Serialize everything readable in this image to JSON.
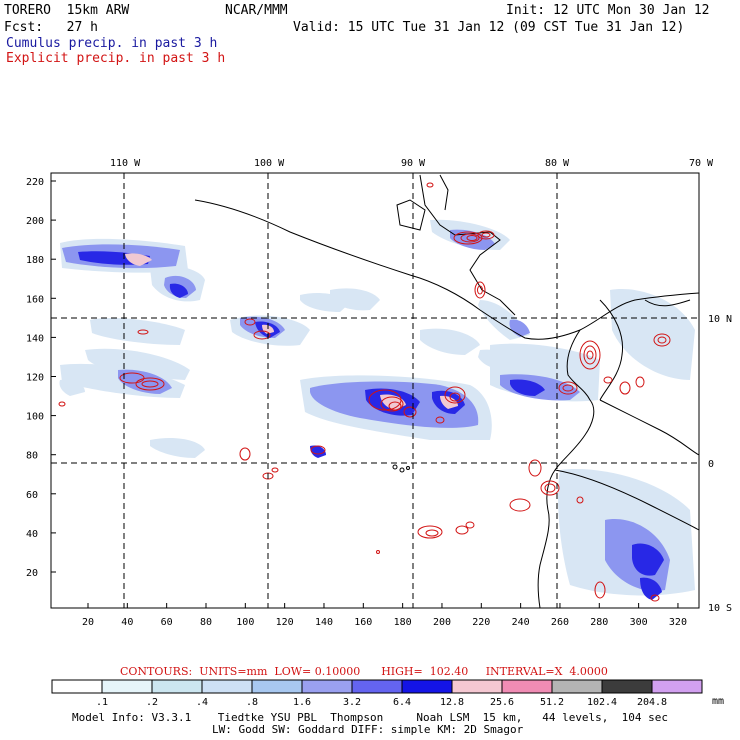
{
  "header": {
    "title": "TORERO  15km ARW",
    "org": "NCAR/MMM",
    "init": "Init: 12 UTC Mon 30 Jan 12",
    "fcst": "Fcst:   27 h",
    "valid": "Valid: 15 UTC Tue 31 Jan 12 (09 CST Tue 31 Jan 12)",
    "legend_cumulus": "Cumulus precip. in past 3 h",
    "legend_explicit": "Explicit precip. in past 3 h"
  },
  "map": {
    "top_labels": [
      "110 W",
      "100 W",
      "90 W",
      "80 W",
      "70 W"
    ],
    "right_labels": [
      "10 N",
      "0",
      "10 S"
    ],
    "left_ticks": [
      "220",
      "200",
      "180",
      "160",
      "140",
      "120",
      "100",
      "80",
      "60",
      "40",
      "20"
    ],
    "bottom_ticks": [
      "20",
      "40",
      "60",
      "80",
      "100",
      "120",
      "140",
      "160",
      "180",
      "200",
      "220",
      "240",
      "260",
      "280",
      "300",
      "320"
    ],
    "colors": {
      "cumulus_light": "#d8e6f4",
      "cumulus_mid": "#8c96f0",
      "cumulus_dark": "#2828e6",
      "cumulus_core": "#f0c8d2",
      "explicit_contour": "#d21414",
      "coast": "#000000"
    }
  },
  "footer": {
    "contours_line": "CONTOURS:  UNITS=mm  LOW= 0.10000      HIGH=  102.40     INTERVAL=X  4.0000",
    "colorbar_labels": [
      ".1",
      ".2",
      ".4",
      ".8",
      "1.6",
      "3.2",
      "6.4",
      "12.8",
      "25.6",
      "51.2",
      "102.4",
      "204.8"
    ],
    "colorbar_unit": "mm",
    "colorbar_colors": [
      "#ffffff",
      "#e6f5fa",
      "#cce6f0",
      "#cde0f5",
      "#a8c8f0",
      "#9aa0f0",
      "#6464f0",
      "#1414e6",
      "#f5c8d2",
      "#f08cb4",
      "#b4b4b4",
      "#3c3c3c",
      "#d2a0f0"
    ],
    "model_info_1": "Model Info: V3.3.1    Tiedtke YSU PBL  Thompson     Noah LSM  15 km,   44 levels,  104 sec",
    "model_info_2": "LW: Godd SW: Goddard DIFF: simple KM: 2D Smagor"
  }
}
